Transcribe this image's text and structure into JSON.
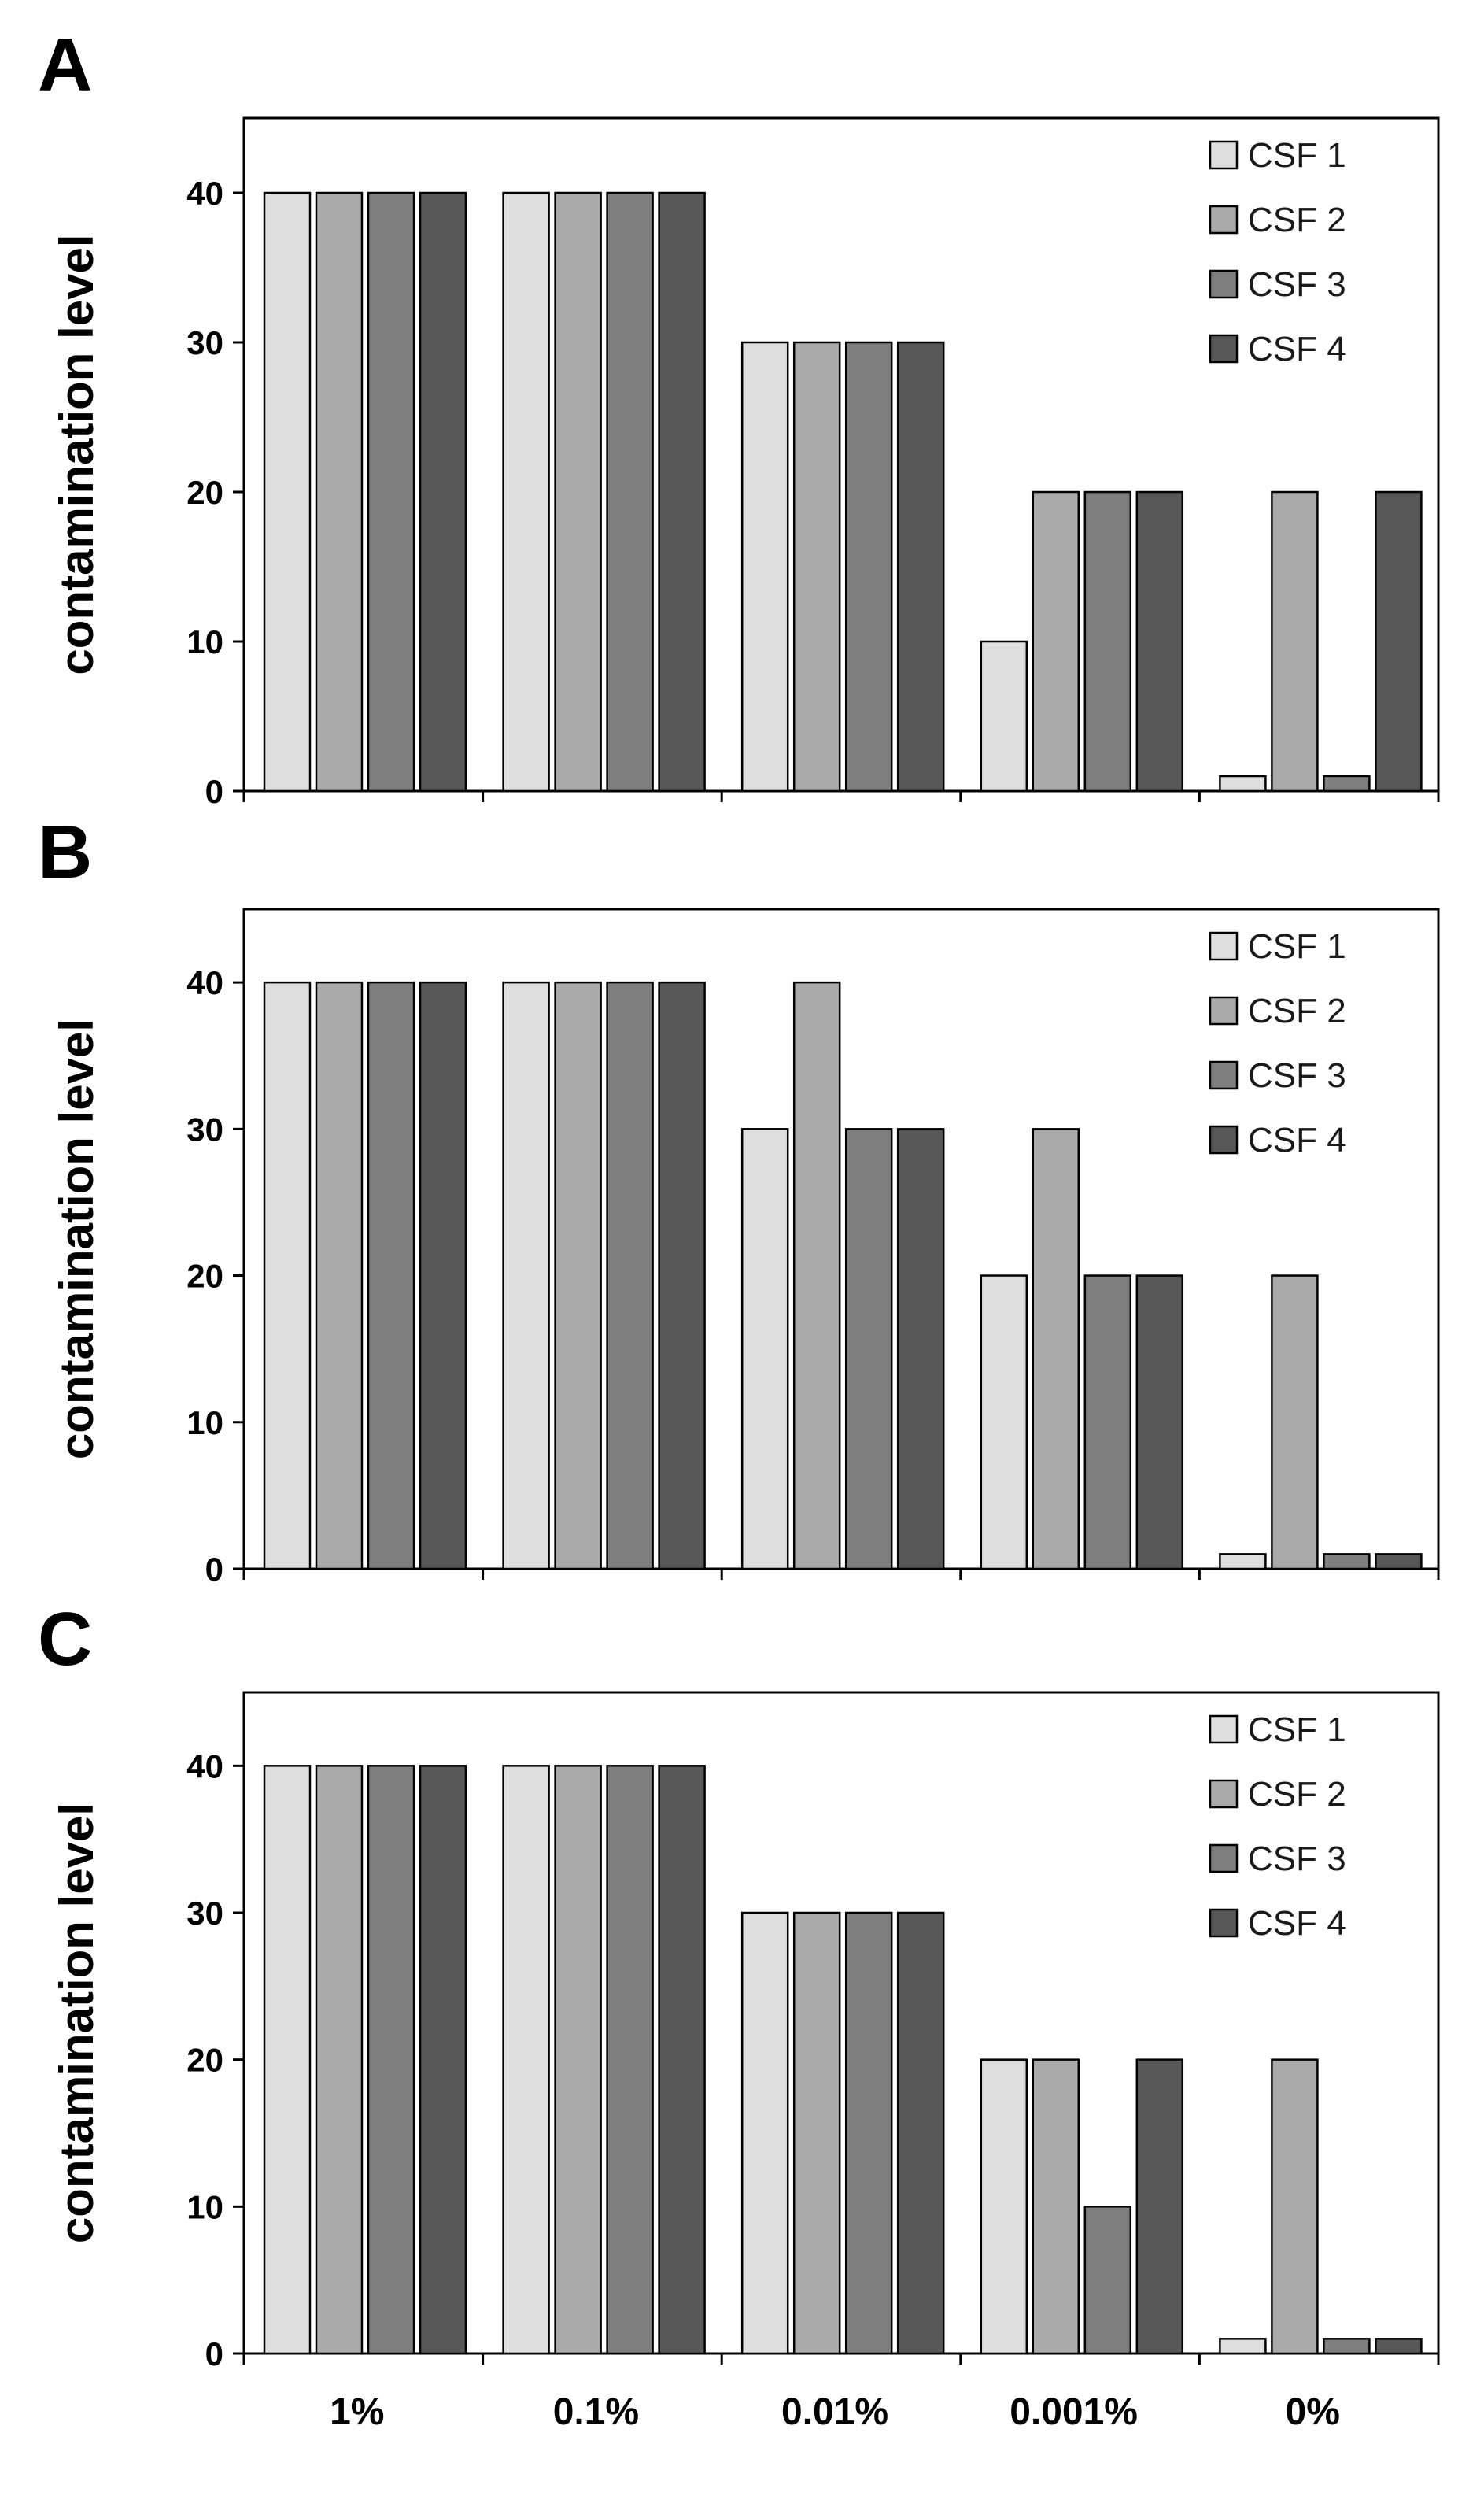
{
  "figure": {
    "title": ""
  },
  "series_colors": [
    "#dedede",
    "#aaaaaa",
    "#7e7e7e",
    "#575757"
  ],
  "chart_data": [
    {
      "type": "bar",
      "panel": "A",
      "title": "",
      "xlabel": "",
      "ylabel": "contamination level",
      "ylim": [
        0,
        45
      ],
      "yticks": [
        0,
        10,
        20,
        30,
        40
      ],
      "categories": [
        "1%",
        "0.1%",
        "0.01%",
        "0.001%",
        "0%"
      ],
      "show_xtick_labels": false,
      "legend_position": "top-right",
      "series": [
        {
          "name": "CSF 1",
          "values": [
            40,
            40,
            30,
            10,
            1
          ]
        },
        {
          "name": "CSF 2",
          "values": [
            40,
            40,
            30,
            20,
            20
          ]
        },
        {
          "name": "CSF 3",
          "values": [
            40,
            40,
            30,
            20,
            1
          ]
        },
        {
          "name": "CSF 4",
          "values": [
            40,
            40,
            30,
            20,
            20
          ]
        }
      ]
    },
    {
      "type": "bar",
      "panel": "B",
      "title": "",
      "xlabel": "",
      "ylabel": "contamination level",
      "ylim": [
        0,
        45
      ],
      "yticks": [
        0,
        10,
        20,
        30,
        40
      ],
      "categories": [
        "1%",
        "0.1%",
        "0.01%",
        "0.001%",
        "0%"
      ],
      "show_xtick_labels": false,
      "legend_position": "top-right",
      "series": [
        {
          "name": "CSF 1",
          "values": [
            40,
            40,
            30,
            20,
            1
          ]
        },
        {
          "name": "CSF 2",
          "values": [
            40,
            40,
            40,
            30,
            20
          ]
        },
        {
          "name": "CSF 3",
          "values": [
            40,
            40,
            30,
            20,
            1
          ]
        },
        {
          "name": "CSF 4",
          "values": [
            40,
            40,
            30,
            20,
            1
          ]
        }
      ]
    },
    {
      "type": "bar",
      "panel": "C",
      "title": "",
      "xlabel": "",
      "ylabel": "contamination level",
      "ylim": [
        0,
        45
      ],
      "yticks": [
        0,
        10,
        20,
        30,
        40
      ],
      "categories": [
        "1%",
        "0.1%",
        "0.01%",
        "0.001%",
        "0%"
      ],
      "show_xtick_labels": true,
      "legend_position": "top-right",
      "series": [
        {
          "name": "CSF 1",
          "values": [
            40,
            40,
            30,
            20,
            1
          ]
        },
        {
          "name": "CSF 2",
          "values": [
            40,
            40,
            30,
            20,
            20
          ]
        },
        {
          "name": "CSF 3",
          "values": [
            40,
            40,
            30,
            10,
            1
          ]
        },
        {
          "name": "CSF 4",
          "values": [
            40,
            40,
            30,
            20,
            1
          ]
        }
      ]
    }
  ]
}
